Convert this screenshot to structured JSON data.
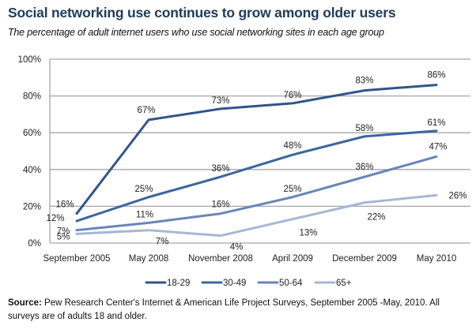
{
  "chart_data": {
    "type": "line",
    "title": "Social networking use continues to grow among older users",
    "subtitle": "The percentage of adult internet users who use social networking sites in each age group",
    "xlabel": "",
    "ylabel": "",
    "categories": [
      "September 2005",
      "May 2008",
      "November 2008",
      "April 2009",
      "December 2009",
      "May 2010"
    ],
    "ylim": [
      0,
      100
    ],
    "yticks": [
      0,
      20,
      40,
      60,
      80,
      100
    ],
    "ytick_labels": [
      "0%",
      "20%",
      "40%",
      "60%",
      "80%",
      "100%"
    ],
    "grid": true,
    "legend_position": "bottom",
    "series": [
      {
        "name": "18-29",
        "color": "#30568a",
        "values": [
          16,
          67,
          73,
          76,
          83,
          86
        ],
        "labels": [
          "16%",
          "67%",
          "73%",
          "76%",
          "83%",
          "86%"
        ]
      },
      {
        "name": "30-49",
        "color": "#3c65a0",
        "values": [
          12,
          25,
          36,
          48,
          58,
          61
        ],
        "labels": [
          "12%",
          "25%",
          "36%",
          "48%",
          "58%",
          "61%"
        ]
      },
      {
        "name": "50-64",
        "color": "#6985bb",
        "values": [
          7,
          11,
          16,
          25,
          36,
          47
        ],
        "labels": [
          "7%",
          "11%",
          "16%",
          "25%",
          "36%",
          "47%"
        ]
      },
      {
        "name": "65+",
        "color": "#a6b7d5",
        "values": [
          5,
          7,
          4,
          13,
          22,
          26
        ],
        "labels": [
          "5%",
          "7%",
          "4%",
          "13%",
          "22%",
          "26%"
        ]
      }
    ]
  },
  "source": {
    "label": "Source:",
    "text": " Pew Research Center's Internet & American Life Project Surveys, September 2005 -May, 2010. All surveys are of adults 18 and older."
  }
}
